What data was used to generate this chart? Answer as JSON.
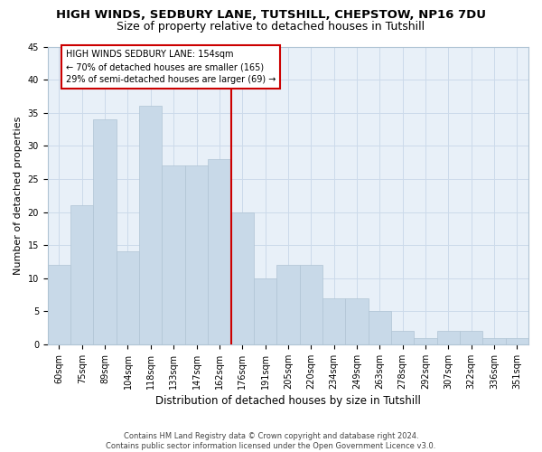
{
  "title": "HIGH WINDS, SEDBURY LANE, TUTSHILL, CHEPSTOW, NP16 7DU",
  "subtitle": "Size of property relative to detached houses in Tutshill",
  "xlabel": "Distribution of detached houses by size in Tutshill",
  "ylabel": "Number of detached properties",
  "categories": [
    "60sqm",
    "75sqm",
    "89sqm",
    "104sqm",
    "118sqm",
    "133sqm",
    "147sqm",
    "162sqm",
    "176sqm",
    "191sqm",
    "205sqm",
    "220sqm",
    "234sqm",
    "249sqm",
    "263sqm",
    "278sqm",
    "292sqm",
    "307sqm",
    "322sqm",
    "336sqm",
    "351sqm"
  ],
  "values": [
    12,
    21,
    34,
    14,
    36,
    27,
    27,
    28,
    20,
    10,
    12,
    12,
    7,
    7,
    5,
    2,
    1,
    2,
    2,
    1,
    1
  ],
  "bar_color": "#c8d9e8",
  "bar_edge_color": "#b0c4d4",
  "vline_color": "#cc0000",
  "annotation_text": "HIGH WINDS SEDBURY LANE: 154sqm\n← 70% of detached houses are smaller (165)\n29% of semi-detached houses are larger (69) →",
  "annotation_box_color": "#ffffff",
  "annotation_box_edge": "#cc0000",
  "ylim": [
    0,
    45
  ],
  "yticks": [
    0,
    5,
    10,
    15,
    20,
    25,
    30,
    35,
    40,
    45
  ],
  "grid_color": "#ccdaea",
  "bg_color": "#e8f0f8",
  "footer": "Contains HM Land Registry data © Crown copyright and database right 2024.\nContains public sector information licensed under the Open Government Licence v3.0.",
  "title_fontsize": 9.5,
  "subtitle_fontsize": 9,
  "xlabel_fontsize": 8.5,
  "ylabel_fontsize": 8,
  "tick_fontsize": 7,
  "annotation_fontsize": 7,
  "footer_fontsize": 6
}
